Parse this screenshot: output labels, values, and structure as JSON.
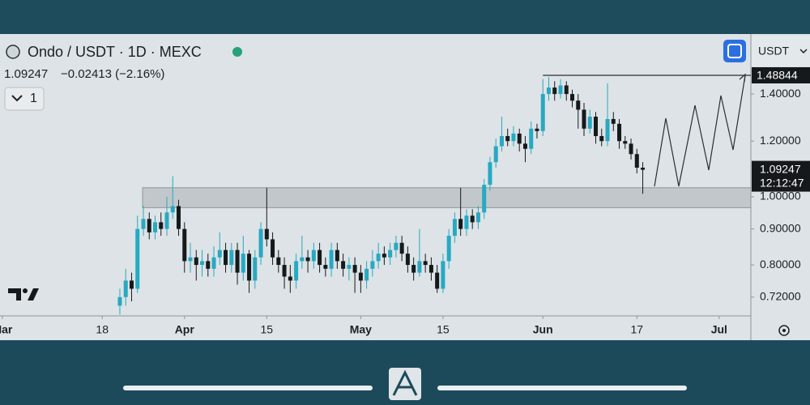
{
  "chart_data": {
    "type": "candlestick",
    "title": "Ondo / USDT · 1D · MEXC",
    "legend_price": "1.09247",
    "legend_change": "−0.02413 (−2.16%)",
    "interval_selector": "1",
    "quote_currency": "USDT",
    "last_price": 1.09247,
    "countdown": "12:12:47",
    "level": 1.48844,
    "zone": [
      0.965,
      1.03
    ],
    "up_color": "#27a9c2",
    "down_color": "#16191c",
    "log_scale": true,
    "grid": false,
    "xlim": [
      -0.4,
      127.4
    ],
    "xticks": [
      {
        "value": 0,
        "label": "Mar"
      },
      {
        "value": 17,
        "label": "18"
      },
      {
        "value": 31,
        "label": "Apr"
      },
      {
        "value": 45,
        "label": "15"
      },
      {
        "value": 61,
        "label": "May"
      },
      {
        "value": 75,
        "label": "15"
      },
      {
        "value": 92,
        "label": "Jun"
      },
      {
        "value": 108,
        "label": "17"
      },
      {
        "value": 122,
        "label": "Jul"
      }
    ],
    "ylim": [
      0.677,
      1.704
    ],
    "yticks": [
      {
        "value": 0.72,
        "label": "0.72000"
      },
      {
        "value": 0.8,
        "label": "0.80000"
      },
      {
        "value": 0.9,
        "label": "0.90000"
      },
      {
        "value": 1,
        "label": "1.00000"
      },
      {
        "value": 1.2,
        "label": "1.20000"
      },
      {
        "value": 1.4,
        "label": "1.40000"
      }
    ],
    "x": [
      20,
      21,
      22,
      23,
      24,
      25,
      26,
      27,
      28,
      29,
      30,
      31,
      32,
      33,
      34,
      35,
      36,
      37,
      38,
      39,
      40,
      41,
      42,
      43,
      44,
      45,
      46,
      47,
      48,
      49,
      50,
      51,
      52,
      53,
      54,
      55,
      56,
      57,
      58,
      59,
      60,
      61,
      62,
      63,
      64,
      65,
      66,
      67,
      68,
      69,
      70,
      71,
      72,
      73,
      74,
      75,
      76,
      77,
      78,
      79,
      80,
      81,
      82,
      83,
      84,
      85,
      86,
      87,
      88,
      89,
      90,
      91,
      92,
      93,
      94,
      95,
      96,
      97,
      98,
      99,
      100,
      101,
      102,
      103,
      104,
      105,
      106,
      107,
      108,
      109
    ],
    "open": [
      0.7,
      0.72,
      0.76,
      0.74,
      0.9,
      0.93,
      0.89,
      0.92,
      0.9,
      0.95,
      0.97,
      0.9,
      0.81,
      0.82,
      0.8,
      0.81,
      0.79,
      0.82,
      0.84,
      0.8,
      0.84,
      0.78,
      0.83,
      0.76,
      0.82,
      0.9,
      0.87,
      0.82,
      0.8,
      0.77,
      0.76,
      0.81,
      0.82,
      0.81,
      0.84,
      0.8,
      0.79,
      0.84,
      0.81,
      0.79,
      0.8,
      0.78,
      0.76,
      0.79,
      0.81,
      0.83,
      0.82,
      0.84,
      0.86,
      0.83,
      0.8,
      0.78,
      0.81,
      0.8,
      0.78,
      0.74,
      0.81,
      0.88,
      0.93,
      0.9,
      0.94,
      0.92,
      0.95,
      1.04,
      1.12,
      1.18,
      1.22,
      1.2,
      1.23,
      1.19,
      1.17,
      1.25,
      1.24,
      1.4,
      1.43,
      1.4,
      1.44,
      1.4,
      1.37,
      1.33,
      1.25,
      1.3,
      1.22,
      1.2,
      1.29,
      1.27,
      1.2,
      1.19,
      1.15,
      1.1
    ],
    "high": [
      0.74,
      0.79,
      0.78,
      0.94,
      0.97,
      0.95,
      0.94,
      0.95,
      1.0,
      1.07,
      0.99,
      0.92,
      0.86,
      0.84,
      0.84,
      0.83,
      0.85,
      0.89,
      0.86,
      0.86,
      0.86,
      0.88,
      0.84,
      0.84,
      0.92,
      1.03,
      0.89,
      0.84,
      0.82,
      0.8,
      0.83,
      0.88,
      0.84,
      0.86,
      0.86,
      0.82,
      0.86,
      0.86,
      0.83,
      0.82,
      0.82,
      0.8,
      0.81,
      0.84,
      0.86,
      0.85,
      0.86,
      0.88,
      0.88,
      0.85,
      0.82,
      0.9,
      0.83,
      0.82,
      0.8,
      0.83,
      0.9,
      0.95,
      1.03,
      0.96,
      0.96,
      0.97,
      1.06,
      1.14,
      1.21,
      1.3,
      1.25,
      1.26,
      1.25,
      1.22,
      1.28,
      1.27,
      1.47,
      1.48,
      1.46,
      1.47,
      1.46,
      1.42,
      1.4,
      1.36,
      1.33,
      1.32,
      1.25,
      1.45,
      1.32,
      1.29,
      1.22,
      1.21,
      1.17,
      1.12
    ],
    "low": [
      0.68,
      0.7,
      0.71,
      0.73,
      0.88,
      0.87,
      0.87,
      0.88,
      0.88,
      0.93,
      0.88,
      0.78,
      0.78,
      0.76,
      0.77,
      0.77,
      0.77,
      0.8,
      0.78,
      0.78,
      0.75,
      0.76,
      0.73,
      0.74,
      0.8,
      0.85,
      0.8,
      0.78,
      0.74,
      0.73,
      0.74,
      0.79,
      0.78,
      0.79,
      0.78,
      0.77,
      0.77,
      0.79,
      0.77,
      0.76,
      0.73,
      0.73,
      0.74,
      0.77,
      0.79,
      0.8,
      0.8,
      0.82,
      0.81,
      0.78,
      0.76,
      0.77,
      0.78,
      0.76,
      0.73,
      0.73,
      0.79,
      0.86,
      0.88,
      0.88,
      0.9,
      0.9,
      0.93,
      1.02,
      1.1,
      1.16,
      1.18,
      1.18,
      1.16,
      1.12,
      1.15,
      1.21,
      1.22,
      1.37,
      1.37,
      1.38,
      1.37,
      1.34,
      1.25,
      1.22,
      1.23,
      1.19,
      1.18,
      1.18,
      1.24,
      1.17,
      1.17,
      1.13,
      1.08,
      1.01
    ],
    "close": [
      0.72,
      0.76,
      0.74,
      0.9,
      0.93,
      0.89,
      0.92,
      0.9,
      0.95,
      0.97,
      0.9,
      0.81,
      0.82,
      0.8,
      0.81,
      0.79,
      0.82,
      0.84,
      0.8,
      0.84,
      0.78,
      0.83,
      0.76,
      0.82,
      0.9,
      0.87,
      0.82,
      0.8,
      0.77,
      0.76,
      0.81,
      0.82,
      0.81,
      0.84,
      0.8,
      0.79,
      0.84,
      0.81,
      0.79,
      0.8,
      0.78,
      0.76,
      0.79,
      0.81,
      0.83,
      0.82,
      0.84,
      0.86,
      0.83,
      0.8,
      0.78,
      0.81,
      0.8,
      0.78,
      0.74,
      0.81,
      0.88,
      0.93,
      0.9,
      0.94,
      0.92,
      0.95,
      1.04,
      1.12,
      1.18,
      1.22,
      1.2,
      1.23,
      1.19,
      1.17,
      1.25,
      1.24,
      1.4,
      1.43,
      1.4,
      1.44,
      1.4,
      1.37,
      1.33,
      1.25,
      1.3,
      1.22,
      1.2,
      1.29,
      1.27,
      1.2,
      1.19,
      1.15,
      1.1,
      1.09247
    ]
  }
}
